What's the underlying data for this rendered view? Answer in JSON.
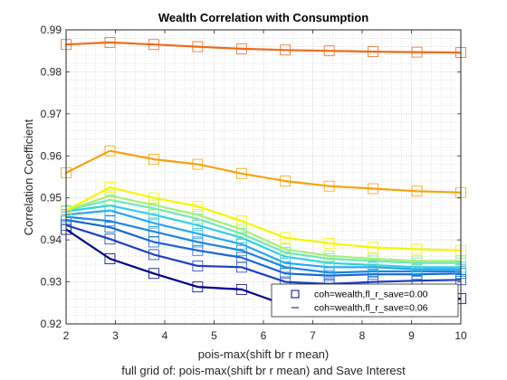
{
  "chart_data": {
    "type": "line",
    "title": "Wealth Correlation with Consumption",
    "xlabel": "pois-max(shift br r mean)",
    "subtitle": "full grid of: pois-max(shift br r mean) and Save Interest",
    "ylabel": "Correlation Coefficient",
    "xlim": [
      2,
      10
    ],
    "ylim": [
      0.92,
      0.99
    ],
    "xticks": [
      "2",
      "3",
      "4",
      "5",
      "6",
      "7",
      "8",
      "9",
      "10"
    ],
    "yticks": [
      "0.92",
      "0.93",
      "0.94",
      "0.95",
      "0.96",
      "0.97",
      "0.98",
      "0.99"
    ],
    "grid": true,
    "minor_grid": true,
    "legend_position": "bottom-right",
    "legend": [
      "coh=wealth,fl_r_save=0.00",
      "coh=wealth,fl_r_save=0.06"
    ],
    "x": [
      2,
      2.889,
      3.778,
      4.667,
      5.556,
      6.444,
      7.333,
      8.222,
      9.111,
      10
    ],
    "series": [
      {
        "color": "#00008b",
        "values": [
          0.9425,
          0.9355,
          0.932,
          0.9288,
          0.9282,
          0.9245,
          0.9232,
          0.9245,
          0.9252,
          0.926
        ]
      },
      {
        "color": "#1f3fbf",
        "values": [
          0.9435,
          0.9402,
          0.9365,
          0.9338,
          0.9335,
          0.93,
          0.9295,
          0.93,
          0.9303,
          0.9305
        ]
      },
      {
        "color": "#1a64d6",
        "values": [
          0.9448,
          0.943,
          0.9395,
          0.9375,
          0.9358,
          0.932,
          0.9315,
          0.9318,
          0.9318,
          0.932
        ]
      },
      {
        "color": "#1c86e3",
        "values": [
          0.9455,
          0.9445,
          0.942,
          0.9395,
          0.9375,
          0.9335,
          0.9322,
          0.9325,
          0.9325,
          0.9325
        ]
      },
      {
        "color": "#26a8ee",
        "values": [
          0.946,
          0.947,
          0.944,
          0.9415,
          0.939,
          0.9345,
          0.9335,
          0.9335,
          0.933,
          0.933
        ]
      },
      {
        "color": "#2fd0e8",
        "values": [
          0.9468,
          0.9482,
          0.946,
          0.9435,
          0.9405,
          0.936,
          0.9345,
          0.934,
          0.9335,
          0.9335
        ]
      },
      {
        "color": "#6fe8b8",
        "values": [
          0.947,
          0.9495,
          0.9475,
          0.945,
          0.9415,
          0.937,
          0.9355,
          0.935,
          0.9345,
          0.9345
        ]
      },
      {
        "color": "#a8ef78",
        "values": [
          0.947,
          0.9505,
          0.9483,
          0.946,
          0.9425,
          0.9378,
          0.9362,
          0.9355,
          0.935,
          0.935
        ]
      },
      {
        "color": "#f6f600",
        "values": [
          0.947,
          0.9525,
          0.95,
          0.948,
          0.9445,
          0.9405,
          0.9392,
          0.9382,
          0.9378,
          0.9375
        ]
      },
      {
        "color": "#f8a20a",
        "values": [
          0.956,
          0.9612,
          0.9592,
          0.958,
          0.9558,
          0.954,
          0.9528,
          0.9522,
          0.9516,
          0.9513
        ]
      },
      {
        "color": "#f06a1a",
        "values": [
          0.9865,
          0.987,
          0.9865,
          0.986,
          0.9855,
          0.9852,
          0.985,
          0.9848,
          0.9847,
          0.9846
        ]
      }
    ]
  }
}
